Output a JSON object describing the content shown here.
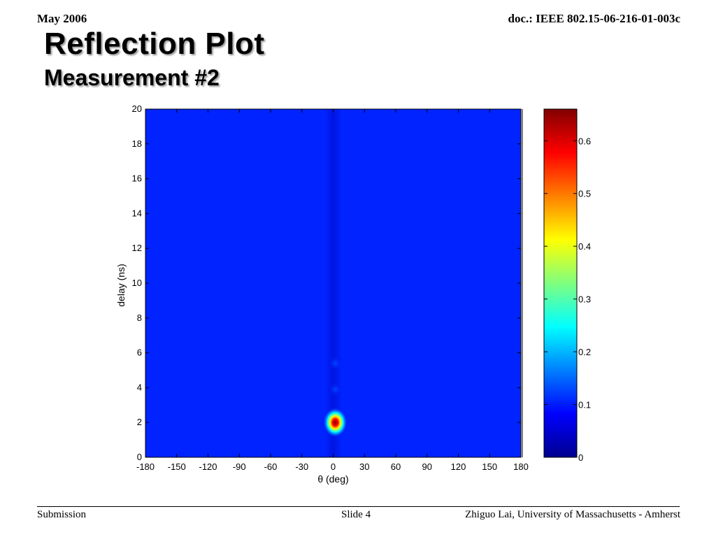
{
  "header": {
    "date": "May 2006",
    "doc": "doc.: IEEE 802.15-06-216-01-003c"
  },
  "title": "Reflection Plot",
  "subtitle": "Measurement #2",
  "footer": {
    "left": "Submission",
    "middle": "Slide 4",
    "right": "Zhiguo Lai, University of Massachusetts - Amherst"
  },
  "chart_data": {
    "type": "heatmap",
    "xlabel": "θ (deg)",
    "ylabel": "delay (ns)",
    "xlim": [
      -180,
      180
    ],
    "ylim": [
      0,
      20
    ],
    "xticks": [
      -180,
      -150,
      -120,
      -90,
      -60,
      -30,
      0,
      30,
      60,
      90,
      120,
      150,
      180
    ],
    "yticks": [
      0,
      2,
      4,
      6,
      8,
      10,
      12,
      14,
      16,
      18,
      20
    ],
    "colorbar": {
      "min": 0,
      "max": 0.66,
      "ticks": [
        0,
        0.1,
        0.2,
        0.3,
        0.4,
        0.5,
        0.6
      ],
      "colormap": "jet"
    },
    "background_value": 0.03,
    "peaks": [
      {
        "theta": 2,
        "delay": 2.0,
        "value": 0.66
      },
      {
        "theta": 2,
        "delay": 3.9,
        "value": 0.1
      },
      {
        "theta": 2,
        "delay": 5.4,
        "value": 0.06
      }
    ],
    "grid": false
  }
}
